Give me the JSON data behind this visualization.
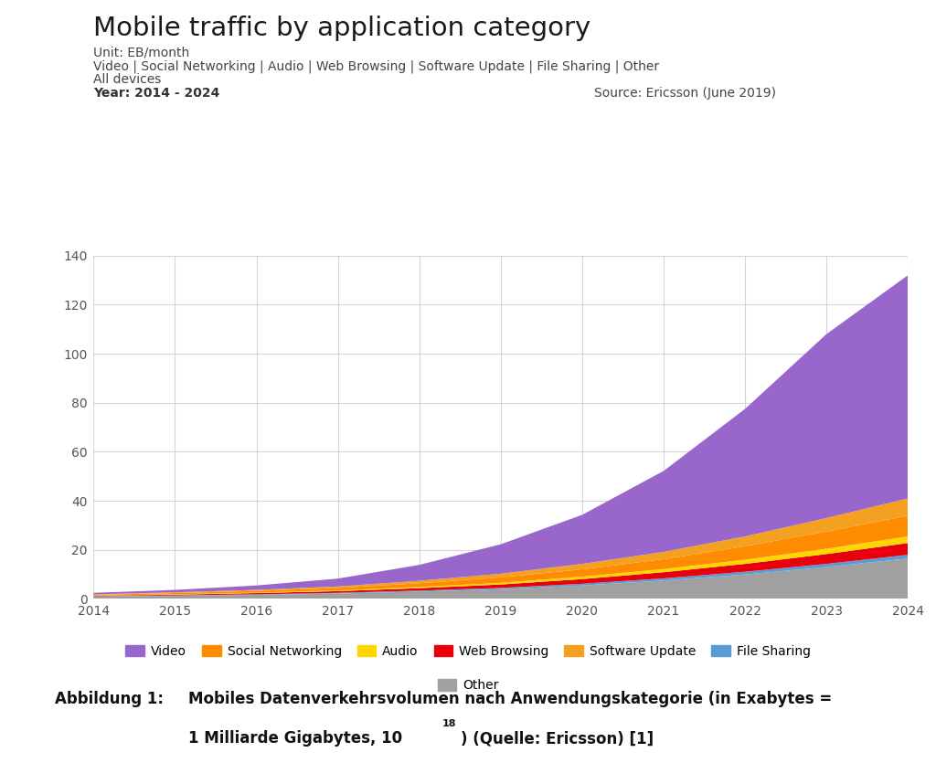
{
  "title": "Mobile traffic by application category",
  "subtitle_unit": "Unit: EB/month",
  "subtitle_categories": "Video | Social Networking | Audio | Web Browsing | Software Update | File Sharing | Other",
  "subtitle_devices": "All devices",
  "subtitle_year": "Year: 2014 - 2024",
  "source": "Source: Ericsson (June 2019)",
  "ylim": [
    0,
    140
  ],
  "years": [
    2014,
    2015,
    2016,
    2017,
    2018,
    2019,
    2020,
    2021,
    2022,
    2023,
    2024
  ],
  "categories": [
    "Other",
    "File Sharing",
    "Web Browsing",
    "Audio",
    "Social Networking",
    "Software Update",
    "Video"
  ],
  "colors": [
    "#a0a0a0",
    "#5b9bd5",
    "#e8000d",
    "#ffd700",
    "#ff8c00",
    "#f4a020",
    "#9966cc"
  ],
  "data": {
    "Other": [
      1.0,
      1.3,
      1.7,
      2.2,
      3.0,
      4.0,
      5.5,
      7.5,
      10.0,
      13.0,
      16.5
    ],
    "File Sharing": [
      0.1,
      0.15,
      0.2,
      0.3,
      0.4,
      0.5,
      0.7,
      0.9,
      1.1,
      1.3,
      1.5
    ],
    "Web Browsing": [
      0.2,
      0.3,
      0.5,
      0.7,
      1.0,
      1.4,
      1.9,
      2.5,
      3.2,
      4.0,
      4.8
    ],
    "Audio": [
      0.1,
      0.15,
      0.2,
      0.3,
      0.5,
      0.7,
      1.0,
      1.3,
      1.7,
      2.2,
      2.7
    ],
    "Social Networking": [
      0.3,
      0.5,
      0.7,
      1.0,
      1.5,
      2.2,
      3.0,
      4.0,
      5.5,
      7.0,
      8.5
    ],
    "Software Update": [
      0.2,
      0.3,
      0.4,
      0.6,
      1.0,
      1.5,
      2.2,
      3.0,
      4.0,
      5.5,
      7.0
    ],
    "Video": [
      0.6,
      1.0,
      1.8,
      3.2,
      6.5,
      12.0,
      20.0,
      33.0,
      52.0,
      75.0,
      91.0
    ]
  },
  "legend_order": [
    "Video",
    "Social Networking",
    "Audio",
    "Web Browsing",
    "Software Update",
    "File Sharing",
    "Other"
  ],
  "legend_colors": {
    "Video": "#9966cc",
    "Social Networking": "#ff8c00",
    "Audio": "#ffd700",
    "Web Browsing": "#e8000d",
    "Software Update": "#f4a020",
    "File Sharing": "#5b9bd5",
    "Other": "#a0a0a0"
  },
  "background_color": "#ffffff",
  "grid_color": "#cccccc"
}
